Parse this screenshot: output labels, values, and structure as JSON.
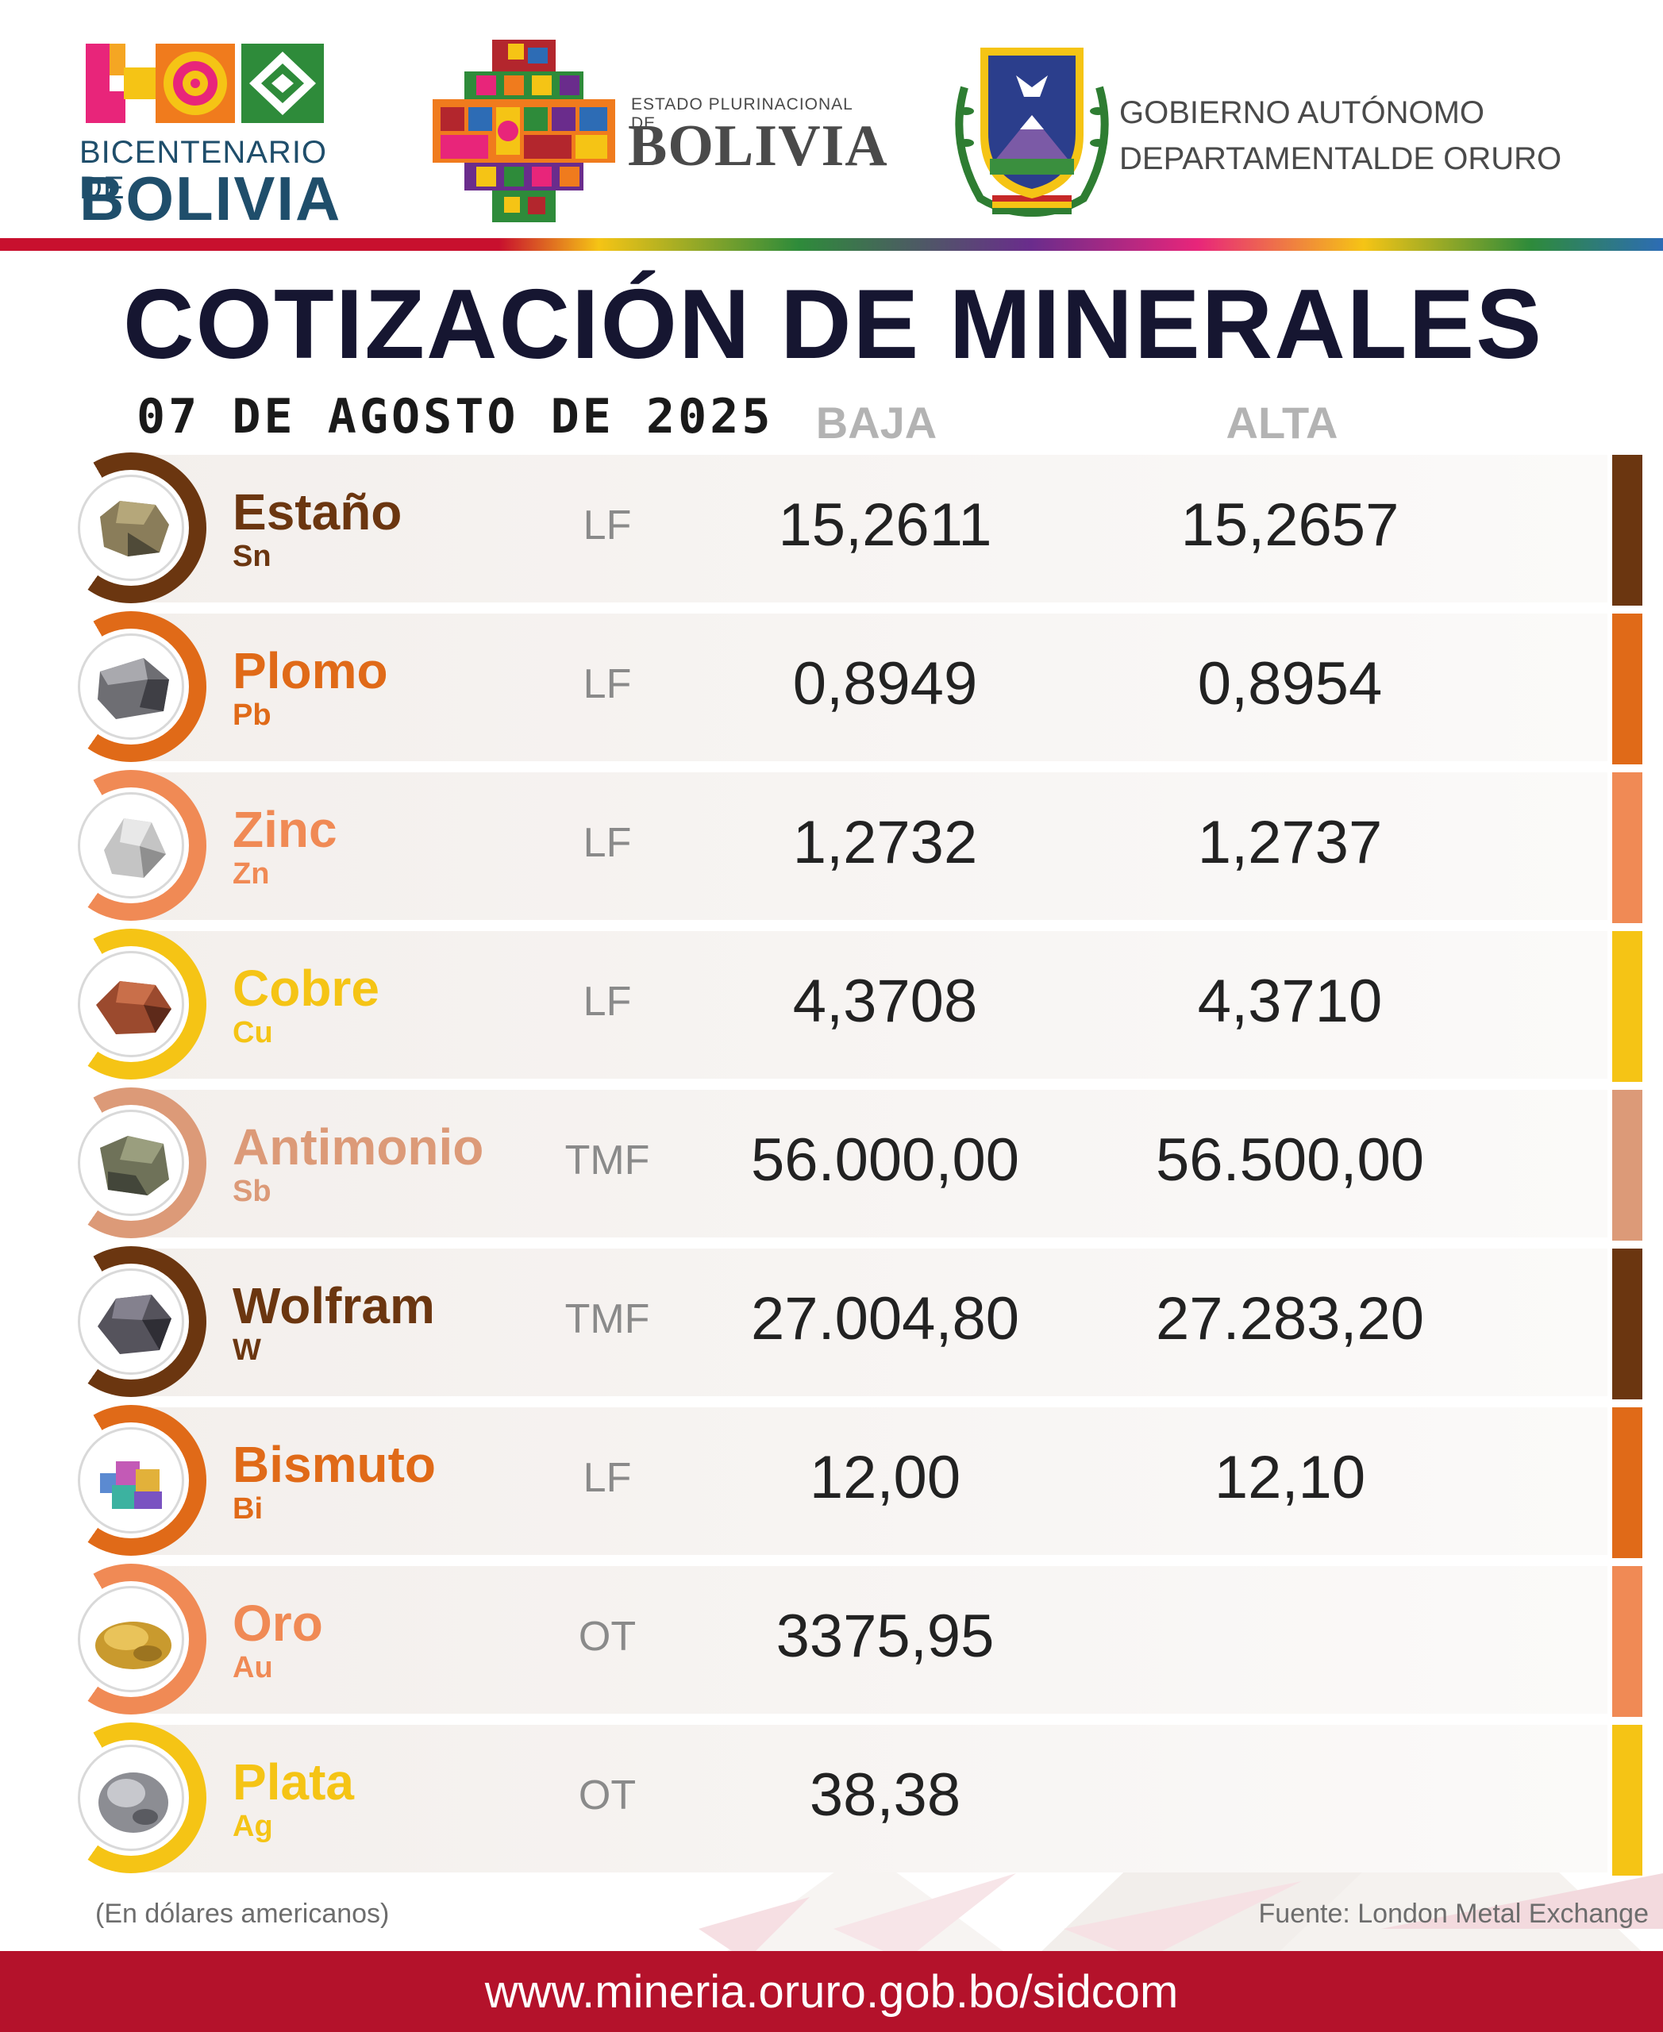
{
  "header": {
    "bicentenario_line1": "BICENTENARIO DE",
    "bicentenario_line2": "BOLIVIA",
    "estado_line1": "ESTADO PLURINACIONAL DE",
    "estado_line2": "BOLIVIA",
    "gobierno_line1": "GOBIERNO AUTÓNOMO",
    "gobierno_line2": "DEPARTAMENTALDE ORURO"
  },
  "title": "COTIZACIÓN DE MINERALES",
  "date": "07 DE AGOSTO DE 2025",
  "columns": {
    "baja": "BAJA",
    "alta": "ALTA"
  },
  "minerals": [
    {
      "name": "Estaño",
      "symbol": "Sn",
      "unit": "LF",
      "baja": "15,2611",
      "alta": "15,2657",
      "color": "#6b3610",
      "icon": "cassiterite-icon"
    },
    {
      "name": "Plomo",
      "symbol": "Pb",
      "unit": "LF",
      "baja": "0,8949",
      "alta": "0,8954",
      "color": "#e06a18",
      "icon": "galena-icon"
    },
    {
      "name": "Zinc",
      "symbol": "Zn",
      "unit": "LF",
      "baja": "1,2732",
      "alta": "1,2737",
      "color": "#f08a55",
      "icon": "zinc-ore-icon"
    },
    {
      "name": "Cobre",
      "symbol": "Cu",
      "unit": "LF",
      "baja": "4,3708",
      "alta": "4,3710",
      "color": "#f5c415",
      "icon": "copper-ore-icon"
    },
    {
      "name": "Antimonio",
      "symbol": "Sb",
      "unit": "TMF",
      "baja": "56.000,00",
      "alta": "56.500,00",
      "color": "#dc9a78",
      "icon": "antimony-ore-icon"
    },
    {
      "name": "Wolfram",
      "symbol": "W",
      "unit": "TMF",
      "baja": "27.004,80",
      "alta": "27.283,20",
      "color": "#6b3610",
      "icon": "wolframite-icon"
    },
    {
      "name": "Bismuto",
      "symbol": "Bi",
      "unit": "LF",
      "baja": "12,00",
      "alta": "12,10",
      "color": "#e06a18",
      "icon": "bismuth-crystal-icon"
    },
    {
      "name": "Oro",
      "symbol": "Au",
      "unit": "OT",
      "baja": "3375,95",
      "alta": "",
      "color": "#f08a55",
      "icon": "gold-nugget-icon"
    },
    {
      "name": "Plata",
      "symbol": "Ag",
      "unit": "OT",
      "baja": "38,38",
      "alta": "",
      "color": "#f5c415",
      "icon": "silver-ore-icon"
    }
  ],
  "note": "(En dólares americanos)",
  "source": "Fuente: London Metal Exchange",
  "footer_url": "www.mineria.oruro.gob.bo/sidcom"
}
